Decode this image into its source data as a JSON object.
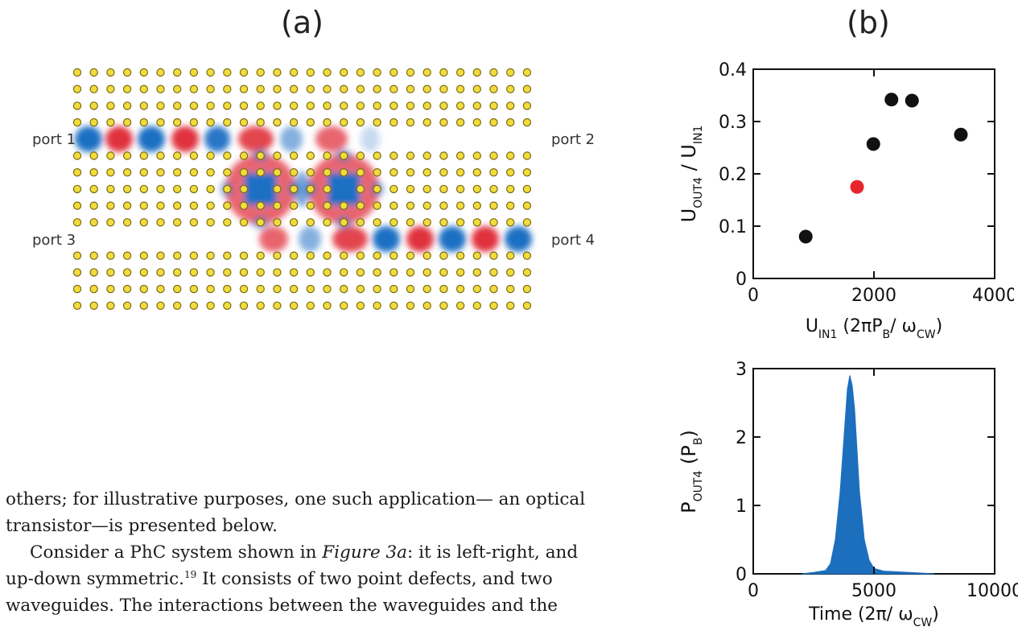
{
  "figure": {
    "panel_a_label": "(a)",
    "panel_b_label": "(b)",
    "ports": [
      "port 1",
      "port 2",
      "port 3",
      "port 4"
    ]
  },
  "colors": {
    "rod_fill": "#f1dc3d",
    "rod_stroke": "#7a6a15",
    "field_red": "#e0323c",
    "field_blue": "#1f6fc4",
    "marker_black": "#111111",
    "marker_red": "#e8252f",
    "bar_blue": "#1c6fbd"
  },
  "chart_data": [
    {
      "type": "scatter",
      "xlabel": "U_IN1 (2πP_B/ ω_CW)",
      "ylabel": "U_OUT4 / U_IN1",
      "xlim": [
        0,
        4000
      ],
      "ylim": [
        0,
        0.4
      ],
      "xticks": [
        "0",
        "2000",
        "4000"
      ],
      "yticks": [
        "0",
        "0.1",
        "0.2",
        "0.3",
        "0.4"
      ],
      "points": [
        {
          "x": 870,
          "y": 0.08,
          "color": "black"
        },
        {
          "x": 1720,
          "y": 0.175,
          "color": "red"
        },
        {
          "x": 1990,
          "y": 0.257,
          "color": "black"
        },
        {
          "x": 2290,
          "y": 0.342,
          "color": "black"
        },
        {
          "x": 2630,
          "y": 0.34,
          "color": "black"
        },
        {
          "x": 3440,
          "y": 0.275,
          "color": "black"
        }
      ]
    },
    {
      "type": "area",
      "xlabel": "Time (2π/ ω_CW)",
      "ylabel": "P_OUT4 (P_B)",
      "xlim": [
        0,
        10000
      ],
      "ylim": [
        0,
        3
      ],
      "xticks": [
        "0",
        "5000",
        "10000"
      ],
      "yticks": [
        "0",
        "1",
        "2",
        "3"
      ],
      "x": [
        2000,
        2500,
        3000,
        3200,
        3400,
        3600,
        3800,
        3900,
        4000,
        4100,
        4200,
        4300,
        4400,
        4600,
        4800,
        5000,
        5400,
        6000,
        7000,
        7500
      ],
      "values": [
        0.0,
        0.02,
        0.05,
        0.15,
        0.5,
        1.2,
        2.2,
        2.7,
        2.9,
        2.75,
        2.4,
        1.8,
        1.2,
        0.5,
        0.2,
        0.08,
        0.04,
        0.03,
        0.01,
        0.0
      ]
    }
  ],
  "text": {
    "line1": "others; for illustrative purposes, one such application— an optical",
    "line2": "transistor—is presented below.",
    "para2_start": "Consider a PhC system shown in ",
    "para2_figref": "Figure 3a",
    "para2_mid": ": it is left-right, and",
    "line4_start": "up-down symmetric.",
    "line4_ref": "19",
    "line4_end": " It consists of two point defects, and two",
    "line5": "waveguides. The interactions between the waveguides and the"
  }
}
